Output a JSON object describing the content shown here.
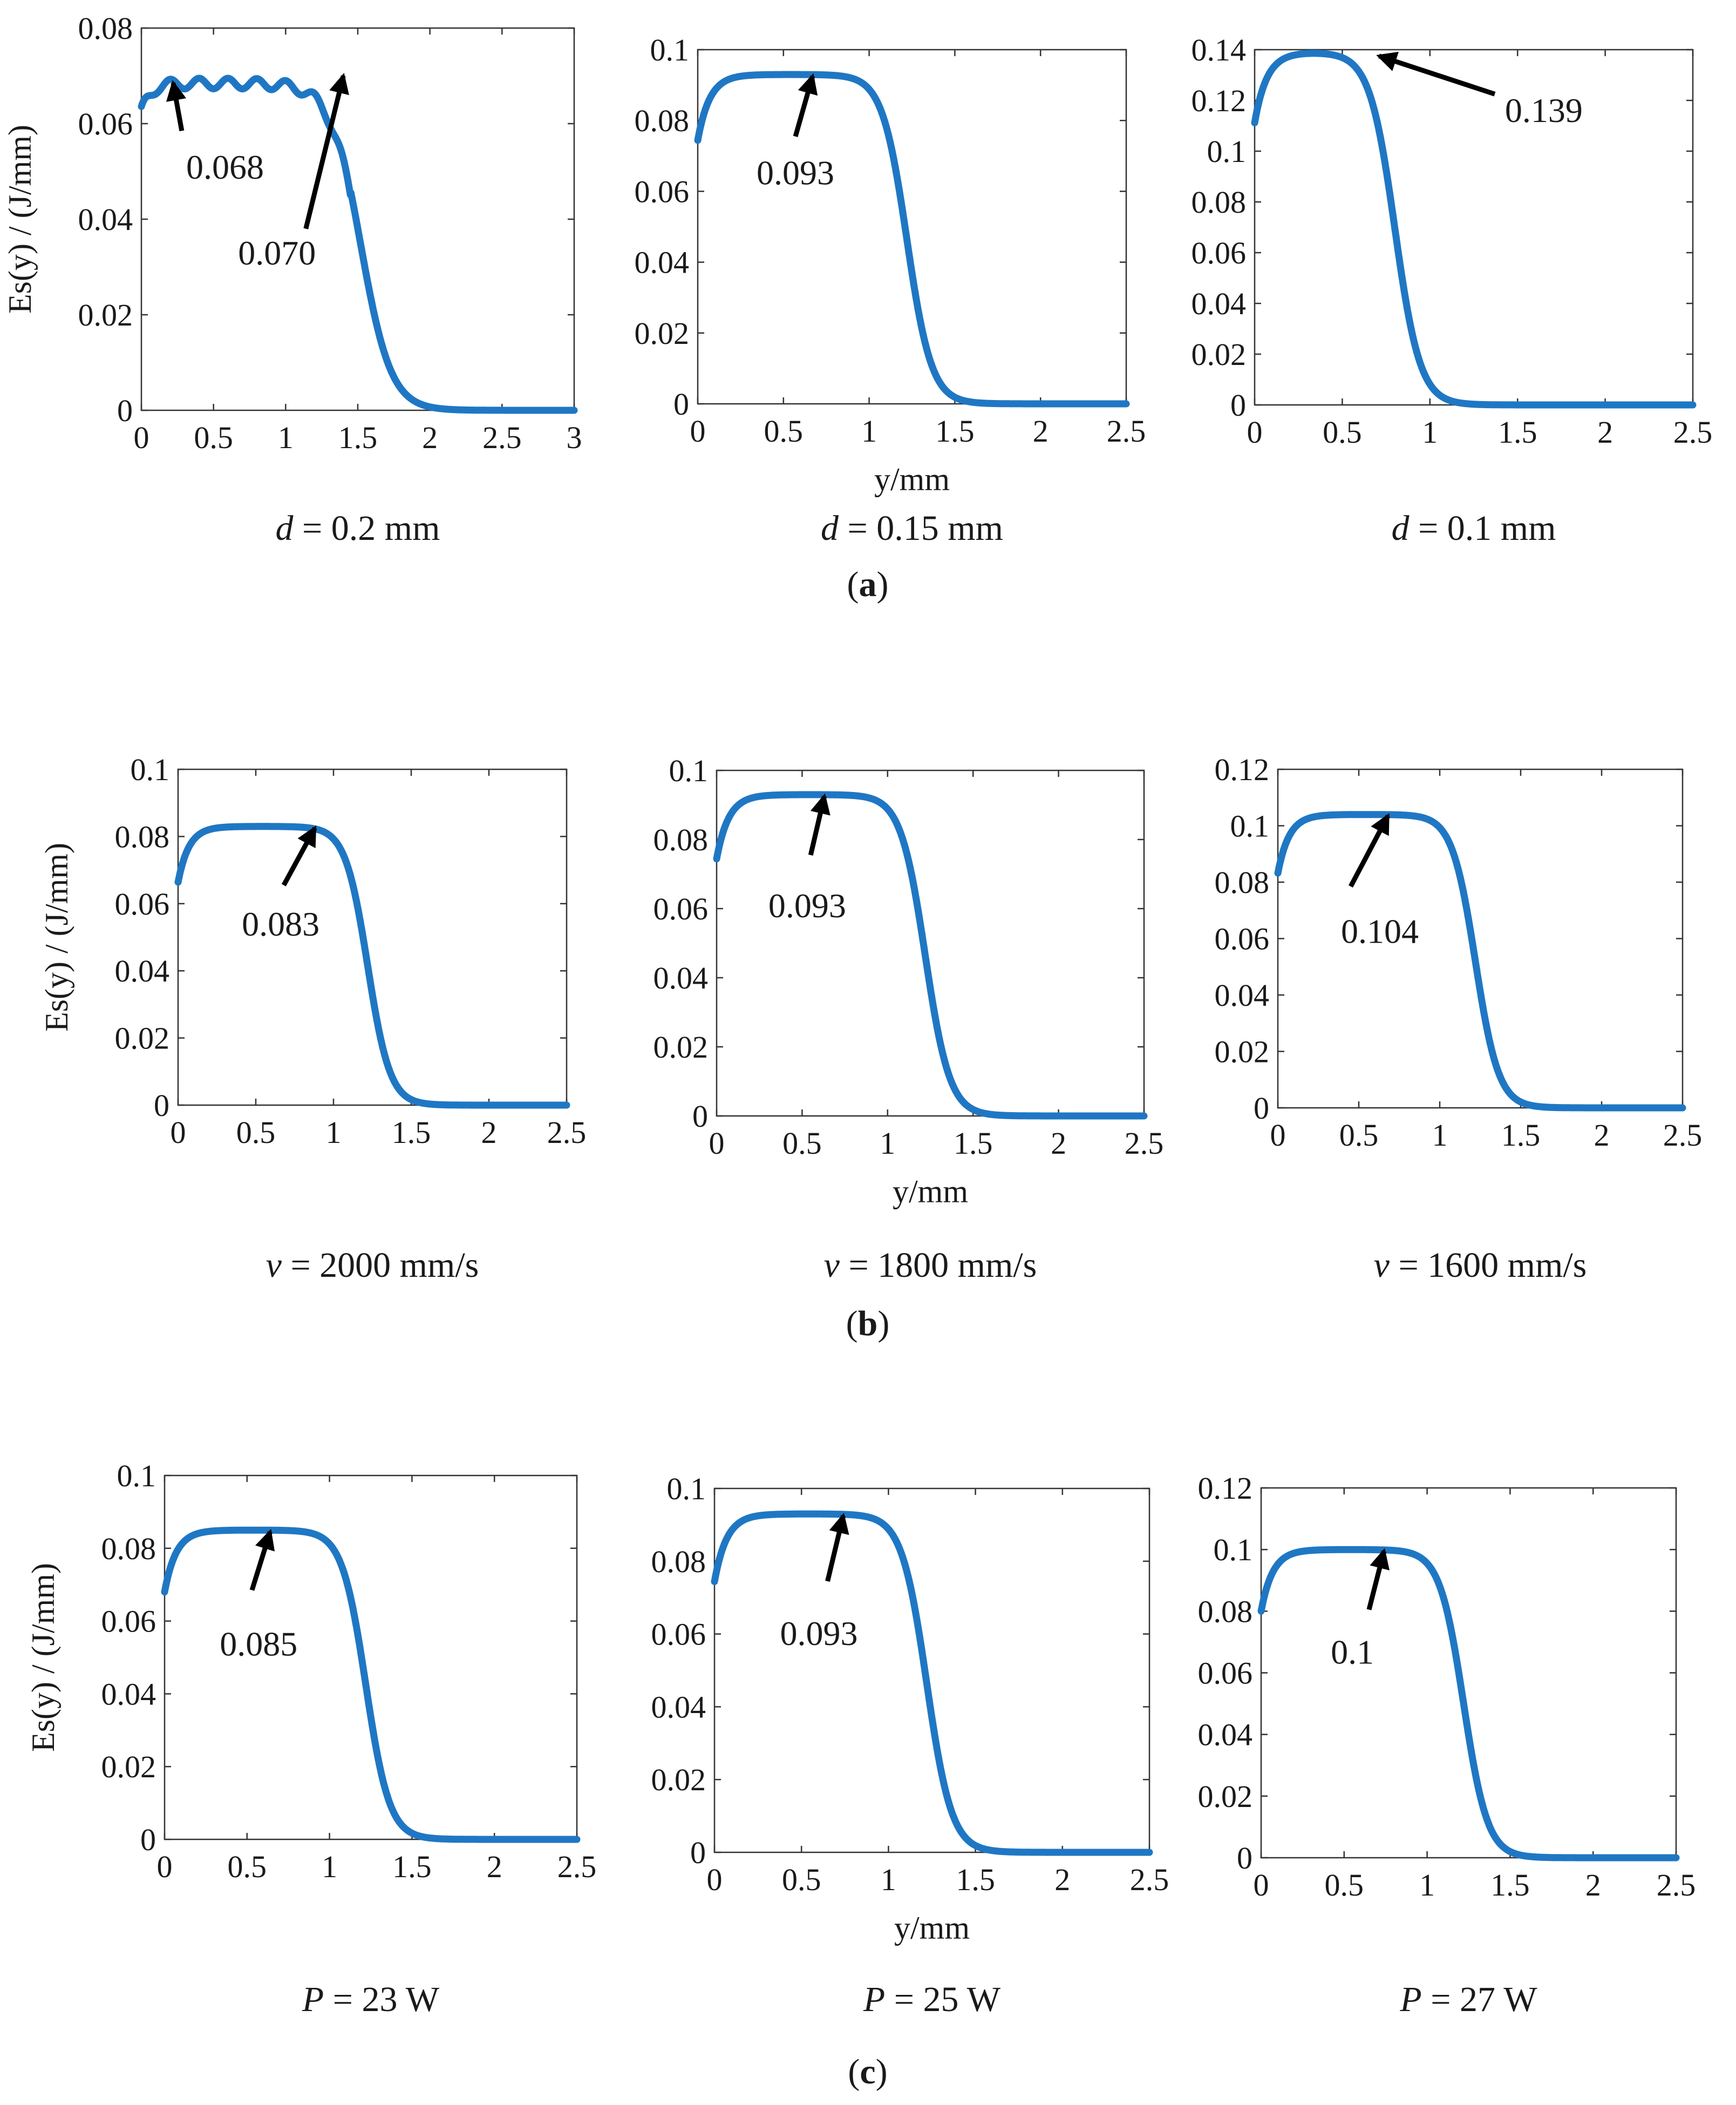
{
  "colors": {
    "curve": "#1f77c4",
    "frame": "#333333",
    "arrow": "#000000"
  },
  "chart_data": [
    {
      "id": "a1",
      "type": "line",
      "row": 0,
      "col": 0,
      "plateau": 0.0695,
      "x0": 1.52,
      "width": 0.105,
      "ripple": true,
      "xlim": [
        0,
        3
      ],
      "ylim": [
        0,
        0.08
      ],
      "xticks": [
        "0",
        "0.5",
        "1",
        "1.5",
        "2",
        "2.5",
        "3"
      ],
      "xtick_values": [
        0,
        0.5,
        1,
        1.5,
        2,
        2.5,
        3
      ],
      "yticks": [
        "0",
        "0.02",
        "0.04",
        "0.06",
        "0.08"
      ],
      "ytick_values": [
        0,
        0.02,
        0.04,
        0.06,
        0.08
      ],
      "ylabel": "Es(y) / (J/mm)",
      "xlabel": "",
      "caption_var": "d",
      "caption_rest": " = 0.2 mm",
      "annotations": [
        {
          "text": "0.068",
          "tip": [
            0.22,
            0.0685
          ],
          "tail": [
            0.28,
            0.0585
          ],
          "label": [
            0.58,
            0.0485
          ]
        },
        {
          "text": "0.070",
          "tip": [
            1.4,
            0.07
          ],
          "tail": [
            1.14,
            0.038
          ],
          "label": [
            0.94,
            0.0305
          ]
        }
      ]
    },
    {
      "id": "a2",
      "type": "line",
      "row": 0,
      "col": 1,
      "plateau": 0.093,
      "x0": 1.22,
      "width": 0.072,
      "ripple": false,
      "xlim": [
        0,
        2.5
      ],
      "ylim": [
        0,
        0.1
      ],
      "xticks": [
        "0",
        "0.5",
        "1",
        "1.5",
        "2",
        "2.5"
      ],
      "xtick_values": [
        0,
        0.5,
        1,
        1.5,
        2,
        2.5
      ],
      "yticks": [
        "0",
        "0.02",
        "0.04",
        "0.06",
        "0.08",
        "0.1"
      ],
      "ytick_values": [
        0,
        0.02,
        0.04,
        0.06,
        0.08,
        0.1
      ],
      "ylabel": "",
      "xlabel": "y/mm",
      "caption_var": "d",
      "caption_rest": " = 0.15 mm",
      "annotations": [
        {
          "text": "0.093",
          "tip": [
            0.67,
            0.0925
          ],
          "tail": [
            0.57,
            0.0755
          ],
          "label": [
            0.57,
            0.062
          ]
        }
      ]
    },
    {
      "id": "a3",
      "type": "line",
      "row": 0,
      "col": 2,
      "plateau": 0.139,
      "x0": 0.8,
      "width": 0.072,
      "ripple": false,
      "xlim": [
        0,
        2.5
      ],
      "ylim": [
        0,
        0.14
      ],
      "xticks": [
        "0",
        "0.5",
        "1",
        "1.5",
        "2",
        "2.5"
      ],
      "xtick_values": [
        0,
        0.5,
        1,
        1.5,
        2,
        2.5
      ],
      "yticks": [
        "0",
        "0.02",
        "0.04",
        "0.06",
        "0.08",
        "0.1",
        "0.12",
        "0.14"
      ],
      "ytick_values": [
        0,
        0.02,
        0.04,
        0.06,
        0.08,
        0.1,
        0.12,
        0.14
      ],
      "ylabel": "",
      "xlabel": "",
      "caption_var": "d",
      "caption_rest": " = 0.1 mm",
      "annotations": [
        {
          "text": "0.139",
          "tip": [
            0.71,
            0.1375
          ],
          "tail": [
            1.37,
            0.1225
          ],
          "label": [
            1.65,
            0.1115
          ]
        }
      ]
    },
    {
      "id": "b1",
      "type": "line",
      "row": 1,
      "col": 0,
      "plateau": 0.083,
      "x0": 1.22,
      "width": 0.072,
      "ripple": false,
      "xlim": [
        0,
        2.5
      ],
      "ylim": [
        0,
        0.1
      ],
      "xticks": [
        "0",
        "0.5",
        "1",
        "1.5",
        "2",
        "2.5"
      ],
      "xtick_values": [
        0,
        0.5,
        1,
        1.5,
        2,
        2.5
      ],
      "yticks": [
        "0",
        "0.02",
        "0.04",
        "0.06",
        "0.08",
        "0.1"
      ],
      "ytick_values": [
        0,
        0.02,
        0.04,
        0.06,
        0.08,
        0.1
      ],
      "ylabel": "Es(y) / (J/mm)",
      "xlabel": "",
      "caption_var": "v",
      "caption_rest": " = 2000 mm/s",
      "annotations": [
        {
          "text": "0.083",
          "tip": [
            0.88,
            0.0825
          ],
          "tail": [
            0.68,
            0.0655
          ],
          "label": [
            0.66,
            0.0505
          ]
        }
      ]
    },
    {
      "id": "b2",
      "type": "line",
      "row": 1,
      "col": 1,
      "plateau": 0.093,
      "x0": 1.22,
      "width": 0.072,
      "ripple": false,
      "xlim": [
        0,
        2.5
      ],
      "ylim": [
        0,
        0.1
      ],
      "xticks": [
        "0",
        "0.5",
        "1",
        "1.5",
        "2",
        "2.5"
      ],
      "xtick_values": [
        0,
        0.5,
        1,
        1.5,
        2,
        2.5
      ],
      "yticks": [
        "0",
        "0.02",
        "0.04",
        "0.06",
        "0.08",
        "0.1"
      ],
      "ytick_values": [
        0,
        0.02,
        0.04,
        0.06,
        0.08,
        0.1
      ],
      "ylabel": "",
      "xlabel": "y/mm",
      "caption_var": "v",
      "caption_rest": " = 1800 mm/s",
      "annotations": [
        {
          "text": "0.093",
          "tip": [
            0.63,
            0.0925
          ],
          "tail": [
            0.55,
            0.0755
          ],
          "label": [
            0.53,
            0.0575
          ]
        }
      ]
    },
    {
      "id": "b3",
      "type": "line",
      "row": 1,
      "col": 2,
      "plateau": 0.104,
      "x0": 1.22,
      "width": 0.072,
      "ripple": false,
      "xlim": [
        0,
        2.5
      ],
      "ylim": [
        0,
        0.12
      ],
      "xticks": [
        "0",
        "0.5",
        "1",
        "1.5",
        "2",
        "2.5"
      ],
      "xtick_values": [
        0,
        0.5,
        1,
        1.5,
        2,
        2.5
      ],
      "yticks": [
        "0",
        "0.02",
        "0.04",
        "0.06",
        "0.08",
        "0.1",
        "0.12"
      ],
      "ytick_values": [
        0,
        0.02,
        0.04,
        0.06,
        0.08,
        0.1,
        0.12
      ],
      "ylabel": "",
      "xlabel": "",
      "caption_var": "v",
      "caption_rest": " = 1600 mm/s",
      "annotations": [
        {
          "text": "0.104",
          "tip": [
            0.68,
            0.1035
          ],
          "tail": [
            0.45,
            0.0785
          ],
          "label": [
            0.63,
            0.0585
          ]
        }
      ]
    },
    {
      "id": "c1",
      "type": "line",
      "row": 2,
      "col": 0,
      "plateau": 0.085,
      "x0": 1.22,
      "width": 0.072,
      "ripple": false,
      "xlim": [
        0,
        2.5
      ],
      "ylim": [
        0,
        0.1
      ],
      "xticks": [
        "0",
        "0.5",
        "1",
        "1.5",
        "2",
        "2.5"
      ],
      "xtick_values": [
        0,
        0.5,
        1,
        1.5,
        2,
        2.5
      ],
      "yticks": [
        "0",
        "0.02",
        "0.04",
        "0.06",
        "0.08",
        "0.1"
      ],
      "ytick_values": [
        0,
        0.02,
        0.04,
        0.06,
        0.08,
        0.1
      ],
      "ylabel": "Es(y) / (J/mm)",
      "xlabel": "",
      "caption_var": "P",
      "caption_rest": " = 23 W",
      "annotations": [
        {
          "text": "0.085",
          "tip": [
            0.64,
            0.0845
          ],
          "tail": [
            0.53,
            0.0685
          ],
          "label": [
            0.57,
            0.0505
          ]
        }
      ]
    },
    {
      "id": "c2",
      "type": "line",
      "row": 2,
      "col": 1,
      "plateau": 0.093,
      "x0": 1.22,
      "width": 0.072,
      "ripple": false,
      "xlim": [
        0,
        2.5
      ],
      "ylim": [
        0,
        0.1
      ],
      "xticks": [
        "0",
        "0.5",
        "1",
        "1.5",
        "2",
        "2.5"
      ],
      "xtick_values": [
        0,
        0.5,
        1,
        1.5,
        2,
        2.5
      ],
      "yticks": [
        "0",
        "0.02",
        "0.04",
        "0.06",
        "0.08",
        "0.1"
      ],
      "ytick_values": [
        0,
        0.02,
        0.04,
        0.06,
        0.08,
        0.1
      ],
      "ylabel": "",
      "xlabel": "y/mm",
      "caption_var": "P",
      "caption_rest": " = 25 W",
      "annotations": [
        {
          "text": "0.093",
          "tip": [
            0.74,
            0.0925
          ],
          "tail": [
            0.65,
            0.0745
          ],
          "label": [
            0.6,
            0.057
          ]
        }
      ]
    },
    {
      "id": "c3",
      "type": "line",
      "row": 2,
      "col": 2,
      "plateau": 0.1,
      "x0": 1.22,
      "width": 0.072,
      "ripple": false,
      "xlim": [
        0,
        2.5
      ],
      "ylim": [
        0,
        0.12
      ],
      "xticks": [
        "0",
        "0.5",
        "1",
        "1.5",
        "2",
        "2.5"
      ],
      "xtick_values": [
        0,
        0.5,
        1,
        1.5,
        2,
        2.5
      ],
      "yticks": [
        "0",
        "0.02",
        "0.04",
        "0.06",
        "0.08",
        "0.1",
        "0.12"
      ],
      "ytick_values": [
        0,
        0.02,
        0.04,
        0.06,
        0.08,
        0.1,
        0.12
      ],
      "ylabel": "",
      "xlabel": "",
      "caption_var": "P",
      "caption_rest": " = 27 W",
      "annotations": [
        {
          "text": "0.1",
          "tip": [
            0.74,
            0.0995
          ],
          "tail": [
            0.65,
            0.0805
          ],
          "label": [
            0.55,
            0.063
          ]
        }
      ]
    }
  ],
  "panel_labels": [
    {
      "open": "(",
      "letter": "a",
      "close": ")"
    },
    {
      "open": "(",
      "letter": "b",
      "close": ")"
    },
    {
      "open": "(",
      "letter": "c",
      "close": ")"
    }
  ]
}
